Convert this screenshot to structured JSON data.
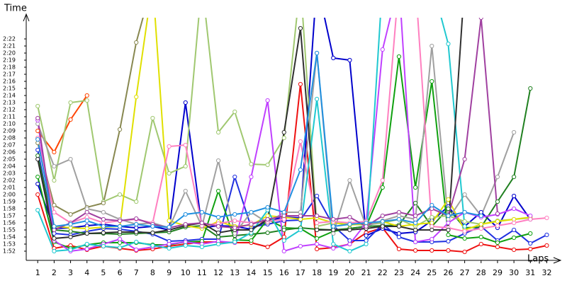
{
  "chart_data": {
    "type": "line",
    "ylabel": "Time",
    "xlabel": "Laps",
    "xlim": [
      0.3,
      32.8
    ],
    "xticks": [
      1,
      2,
      3,
      4,
      5,
      6,
      7,
      8,
      9,
      10,
      11,
      12,
      13,
      14,
      15,
      16,
      17,
      18,
      19,
      20,
      21,
      22,
      23,
      24,
      25,
      26,
      27,
      28,
      29,
      30,
      31,
      32
    ],
    "x": [
      1,
      2,
      3,
      4,
      5,
      6,
      7,
      8,
      9,
      10,
      11,
      12,
      13,
      14,
      15,
      16,
      17,
      18,
      19,
      20,
      21,
      22,
      23,
      24,
      25,
      26,
      27,
      28,
      29,
      30,
      31,
      32
    ],
    "ylim": [
      110.7,
      145
    ],
    "yticks": [
      {
        "value": 112,
        "label": "1:52"
      },
      {
        "value": 113,
        "label": "1:53"
      },
      {
        "value": 114,
        "label": "1:54"
      },
      {
        "value": 115,
        "label": "1:55"
      },
      {
        "value": 116,
        "label": "1:56"
      },
      {
        "value": 117,
        "label": "1:57"
      },
      {
        "value": 118,
        "label": "1:58"
      },
      {
        "value": 119,
        "label": "1:59"
      },
      {
        "value": 120,
        "label": "2:00"
      },
      {
        "value": 121,
        "label": "2:01"
      },
      {
        "value": 122,
        "label": "2:02"
      },
      {
        "value": 123,
        "label": "2:03"
      },
      {
        "value": 124,
        "label": "2:04"
      },
      {
        "value": 125,
        "label": "2:05"
      },
      {
        "value": 126,
        "label": "2:06"
      },
      {
        "value": 127,
        "label": "2:07"
      },
      {
        "value": 128,
        "label": "2:08"
      },
      {
        "value": 129,
        "label": "2:09"
      },
      {
        "value": 130,
        "label": "2:10"
      },
      {
        "value": 131,
        "label": "2:11"
      },
      {
        "value": 132,
        "label": "2:12"
      },
      {
        "value": 133,
        "label": "2:13"
      },
      {
        "value": 134,
        "label": "2:14"
      },
      {
        "value": 135,
        "label": "2:15"
      },
      {
        "value": 136,
        "label": "2:16"
      },
      {
        "value": 137,
        "label": "2:17"
      },
      {
        "value": 138,
        "label": "2:18"
      },
      {
        "value": 139,
        "label": "2:19"
      },
      {
        "value": 140,
        "label": "2:20"
      },
      {
        "value": 141,
        "label": "2:21"
      },
      {
        "value": 142,
        "label": "2:22"
      }
    ],
    "grid": false,
    "series": [
      {
        "color": "#ee1111",
        "values": [
          120,
          112.4,
          112.8,
          112.2,
          112.7,
          112.4,
          112.1,
          112.3,
          112.7,
          113.0,
          113.3,
          113.3,
          113.2,
          113.2,
          112.6,
          114.0,
          135.6,
          112.3,
          112.5,
          113.0,
          114.6,
          115.3,
          112.3,
          112.1,
          112.1,
          112.1,
          111.9,
          113.0,
          112.6,
          112.2,
          112.3,
          112.8
        ]
      },
      {
        "color": "#ff4400",
        "values": [
          129,
          126,
          130.6,
          134,
          null,
          null,
          null,
          null,
          null,
          null,
          null,
          null,
          null,
          null,
          null,
          null,
          null,
          null,
          null,
          null,
          null,
          null,
          null,
          null,
          null,
          null,
          null,
          null,
          null,
          null,
          null,
          null
        ]
      },
      {
        "color": "#0000cc",
        "values": [
          121.5,
          115.2,
          115.3,
          115.6,
          115.8,
          115.5,
          115.3,
          115.5,
          115.0,
          133.0,
          115.3,
          115.6,
          115.5,
          115.1,
          116.3,
          116.8,
          116.7,
          150,
          139.3,
          139.0,
          114.2,
          115.2,
          114.5,
          114.7,
          116.3,
          118.3,
          115.5,
          117.5,
          115.3,
          119.8,
          116.5,
          null
        ]
      },
      {
        "color": "#2030e0",
        "values": [
          126.3,
          114.5,
          114.3,
          114.8,
          115.2,
          115.1,
          114.8,
          114.4,
          113.4,
          113.5,
          113.7,
          113.7,
          122.5,
          115.4,
          115.8,
          116.3,
          116.4,
          119.8,
          115.6,
          113.5,
          113.5,
          115.8,
          114.0,
          113.3,
          113.3,
          113.4,
          114.5,
          115.5,
          113.5,
          115.0,
          113.1,
          114.3
        ]
      },
      {
        "color": "#10a010",
        "values": [
          122.5,
          113.3,
          112.4,
          112.9,
          113.2,
          113.2,
          113.2,
          112.9,
          112.9,
          113.3,
          113.4,
          120.5,
          113.6,
          113.5,
          116.5,
          115.3,
          115.2,
          113.8,
          114.8,
          115.2,
          115.5,
          121.0,
          139.5,
          121.0,
          136.0,
          114.3,
          113.8,
          114.0,
          113.2,
          113.9,
          114.5,
          null
        ]
      },
      {
        "color": "#208020",
        "values": [
          125.5,
          115.0,
          114.8,
          114.5,
          114.5,
          114.4,
          114.5,
          114.6,
          114.7,
          115.4,
          115.6,
          114.0,
          114.2,
          114.4,
          114.6,
          115.0,
          115.3,
          115.1,
          115.0,
          115.2,
          115.5,
          115.6,
          115.7,
          118.8,
          115.5,
          118.0,
          115.3,
          115.4,
          119.0,
          122.5,
          135.0,
          null
        ]
      },
      {
        "color": "#a0c870",
        "values": [
          132.5,
          122.0,
          133.0,
          133.3,
          119.0,
          120.0,
          119.0,
          130.8,
          123.0,
          124.0,
          150,
          128.8,
          131.7,
          124.3,
          124.2,
          128.0,
          150,
          115.5,
          116.0,
          115.8,
          115.7,
          116.0,
          116.5,
          115.5,
          116.8,
          117.0,
          116.2,
          115.8,
          116.3,
          116.5,
          116.7,
          null
        ]
      },
      {
        "color": "#888850",
        "values": [
          127.3,
          118.5,
          117.2,
          118.2,
          118.8,
          129.2,
          141.5,
          150,
          null,
          null,
          null,
          null,
          null,
          null,
          null,
          null,
          null,
          null,
          null,
          null,
          null,
          null,
          null,
          null,
          null,
          null,
          null,
          null,
          null,
          null,
          null,
          null
        ]
      },
      {
        "color": "#e0e000",
        "values": [
          128.0,
          115.5,
          115.3,
          115.2,
          115.4,
          115.5,
          133.8,
          150,
          116.3,
          115.6,
          115.2,
          116.2,
          115.5,
          115.7,
          117.0,
          116.8,
          116.5,
          116.7,
          116.0,
          115.7,
          115.9,
          116.2,
          115.5,
          115.8,
          116.0,
          119.3,
          115.0,
          115.8,
          116.2,
          116.5,
          116.8,
          null
        ]
      },
      {
        "color": "#a0a0a0",
        "values": [
          130.0,
          124.0,
          125.0,
          118.0,
          117.5,
          116.5,
          115.8,
          116.0,
          115.3,
          120.5,
          115.5,
          124.8,
          114.5,
          117.5,
          116.0,
          117.5,
          117.5,
          140.0,
          114.5,
          122.0,
          115.5,
          116.3,
          117.0,
          116.5,
          141.0,
          116.5,
          120.0,
          117.0,
          122.5,
          128.8,
          null,
          null
        ]
      },
      {
        "color": "#c040ff",
        "values": [
          130.5,
          113.5,
          112.0,
          112.3,
          113.0,
          113.7,
          112.2,
          112.6,
          113.0,
          113.3,
          113.0,
          113.4,
          113.2,
          122.5,
          133.3,
          112.0,
          112.7,
          113.0,
          112.4,
          113.0,
          116.0,
          140.5,
          150,
          113.3,
          113.7,
          116.0,
          117.5,
          116.8,
          117.2,
          118.0,
          117.0,
          null
        ]
      },
      {
        "color": "#ff80c0",
        "values": [
          128.0,
          117.5,
          116.0,
          116.8,
          116.0,
          116.3,
          116.5,
          116.0,
          126.8,
          127.0,
          115.6,
          115.9,
          116.3,
          116.0,
          116.2,
          116.5,
          127.5,
          116.0,
          116.2,
          116.0,
          116.2,
          122.0,
          150,
          150,
          115.5,
          115.3,
          114.8,
          115.2,
          115.6,
          116.0,
          116.5,
          116.7
        ]
      },
      {
        "color": "#20c8d0",
        "values": [
          117.8,
          112.0,
          112.2,
          113.0,
          112.7,
          112.5,
          113.3,
          112.8,
          112.4,
          112.8,
          112.6,
          113.0,
          113.3,
          114.6,
          117.8,
          113.5,
          115.0,
          133.5,
          113.0,
          112.0,
          113.0,
          150,
          null,
          null,
          150,
          141.3,
          115.5,
          null,
          null,
          null,
          null,
          null
        ]
      },
      {
        "color": "#303030",
        "values": [
          125.0,
          113.8,
          114.0,
          114.5,
          114.6,
          114.7,
          114.7,
          114.6,
          115.0,
          115.6,
          116.0,
          114.6,
          115.0,
          115.0,
          116.5,
          128.8,
          143.5,
          115.0,
          115.0,
          115.0,
          115.2,
          115.5,
          115.5,
          115.0,
          115.0,
          115.0,
          150,
          null,
          null,
          null,
          null,
          null
        ]
      },
      {
        "color": "#a040a0",
        "values": [
          130.8,
          115.0,
          116.0,
          117.5,
          116.5,
          116.3,
          116.6,
          115.8,
          115.3,
          115.8,
          116.0,
          115.5,
          115.3,
          115.8,
          116.5,
          117.0,
          117.0,
          117.0,
          116.5,
          116.8,
          115.5,
          117.0,
          117.5,
          117.0,
          118.0,
          117.0,
          125.0,
          145,
          117.3,
          null,
          null,
          null
        ]
      },
      {
        "color": "#2090e0",
        "values": [
          127.8,
          115.5,
          115.8,
          116.3,
          115.5,
          115.5,
          115.8,
          115.5,
          115.4,
          117.2,
          117.5,
          116.8,
          117.2,
          117.5,
          118.2,
          117.5,
          123.5,
          140,
          115.5,
          115.8,
          116.0,
          116.2,
          116.5,
          116.0,
          118.5,
          117.0,
          117.5,
          117.0,
          null,
          null,
          null,
          null
        ]
      }
    ]
  }
}
